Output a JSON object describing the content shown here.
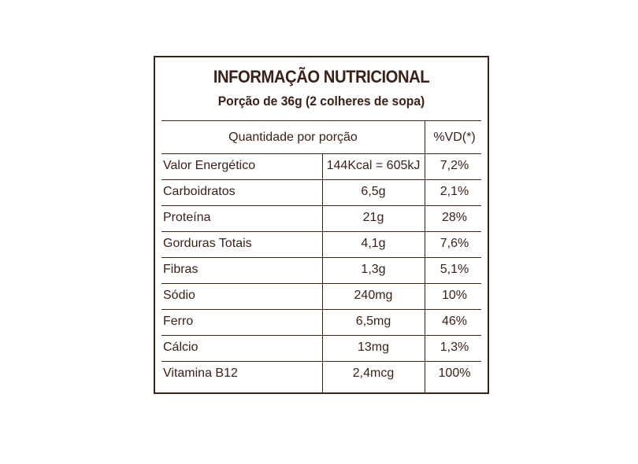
{
  "label": {
    "title": "INFORMAÇÃO NUTRICIONAL",
    "subtitle": "Porção de 36g (2 colheres de sopa)",
    "header": {
      "quantity": "Quantidade por porção",
      "dv": "%VD(*)"
    },
    "rows": [
      {
        "name": "Valor Energético",
        "amount": "144Kcal = 605kJ",
        "dv": "7,2%"
      },
      {
        "name": "Carboidratos",
        "amount": "6,5g",
        "dv": "2,1%"
      },
      {
        "name": "Proteína",
        "amount": "21g",
        "dv": "28%"
      },
      {
        "name": "Gorduras Totais",
        "amount": "4,1g",
        "dv": "7,6%"
      },
      {
        "name": "Fibras",
        "amount": "1,3g",
        "dv": "5,1%"
      },
      {
        "name": "Sódio",
        "amount": "240mg",
        "dv": "10%"
      },
      {
        "name": "Ferro",
        "amount": "6,5mg",
        "dv": "46%"
      },
      {
        "name": "Cálcio",
        "amount": "13mg",
        "dv": "1,3%"
      },
      {
        "name": "Vitamina B12",
        "amount": "2,4mcg",
        "dv": "100%"
      }
    ],
    "colors": {
      "ink": "#3a2218",
      "background": "#ffffff"
    }
  }
}
